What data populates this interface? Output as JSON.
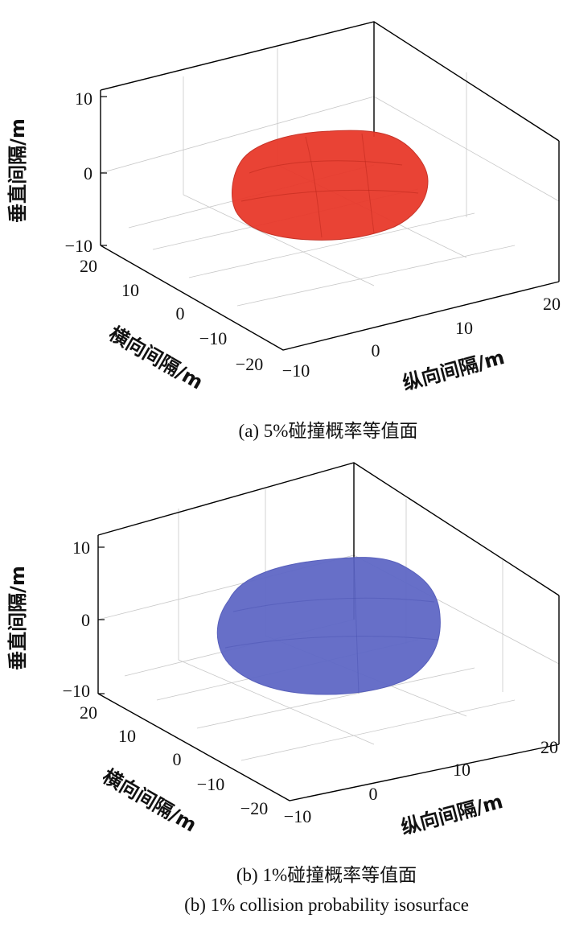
{
  "chart_data": [
    {
      "type": "isosurface-3d",
      "title": "",
      "caption": "(a) 5%碰撞概率等值面",
      "xlabel": "纵向间隔/m",
      "ylabel": "横向间隔/m",
      "zlabel": "垂直间隔/m",
      "xlim": [
        -10,
        20
      ],
      "ylim": [
        -20,
        20
      ],
      "zlim": [
        -10,
        10
      ],
      "xticks": [
        "−10",
        "0",
        "10",
        "20"
      ],
      "yticks": [
        "20",
        "10",
        "0",
        "−10",
        "−20"
      ],
      "zticks": [
        "10",
        "0",
        "−10"
      ],
      "probability": "5%",
      "surface_color": "#e8392b",
      "grid": true
    },
    {
      "type": "isosurface-3d",
      "title": "",
      "caption": "(b) 1%碰撞概率等值面",
      "caption_en": "(b) 1% collision probability isosurface",
      "xlabel": "纵向间隔/m",
      "ylabel": "横向间隔/m",
      "zlabel": "垂直间隔/m",
      "xlim": [
        -10,
        20
      ],
      "ylim": [
        -20,
        20
      ],
      "zlim": [
        -10,
        10
      ],
      "xticks": [
        "−10",
        "0",
        "10",
        "20"
      ],
      "yticks": [
        "20",
        "10",
        "0",
        "−10",
        "−20"
      ],
      "zticks": [
        "10",
        "0",
        "−10"
      ],
      "probability": "1%",
      "surface_color": "#5f68c6",
      "grid": true
    }
  ]
}
